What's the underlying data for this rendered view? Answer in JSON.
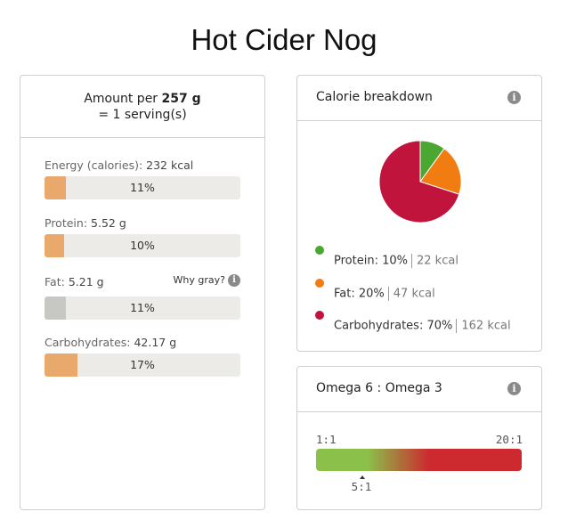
{
  "title": "Hot Cider Nog",
  "amount": {
    "prefix": "Amount per",
    "weight": "257 g",
    "serving": "= 1 serving(s)"
  },
  "nutrients": [
    {
      "label": "Energy (calories):",
      "value": "232 kcal",
      "percent_text": "11%",
      "percent": 11,
      "color": "#e9a96c"
    },
    {
      "label": "Protein:",
      "value": "5.52 g",
      "percent_text": "10%",
      "percent": 10,
      "color": "#e9a96c"
    },
    {
      "label": "Fat:",
      "value": "5.21 g",
      "percent_text": "11%",
      "percent": 11,
      "color": "#c7c7c4",
      "why_label": "Why gray?"
    },
    {
      "label": "Carbohydrates:",
      "value": "42.17 g",
      "percent_text": "17%",
      "percent": 17,
      "color": "#e9a96c"
    }
  ],
  "calorie_breakdown": {
    "title": "Calorie breakdown",
    "info_icon": "info-icon",
    "chart_data": {
      "type": "pie",
      "categories": [
        "Protein",
        "Fat",
        "Carbohydrates"
      ],
      "values": [
        10,
        20,
        70
      ],
      "colors": [
        "#4aa832",
        "#f07c12",
        "#c0143c"
      ]
    },
    "legend": [
      {
        "name": "Protein:",
        "pct": "10%",
        "kcal": "22 kcal",
        "color": "#4aa832"
      },
      {
        "name": "Fat:",
        "pct": "20%",
        "kcal": "47 kcal",
        "color": "#f07c12"
      },
      {
        "name": "Carbohydrates:",
        "pct": "70%",
        "kcal": "162 kcal",
        "color": "#c0143c"
      }
    ]
  },
  "omega": {
    "title": "Omega 6 : Omega 3",
    "info_icon": "info-icon",
    "min_label": "1:1",
    "max_label": "20:1",
    "value_label": "5:1",
    "value": 5,
    "min": 1,
    "max": 20
  }
}
